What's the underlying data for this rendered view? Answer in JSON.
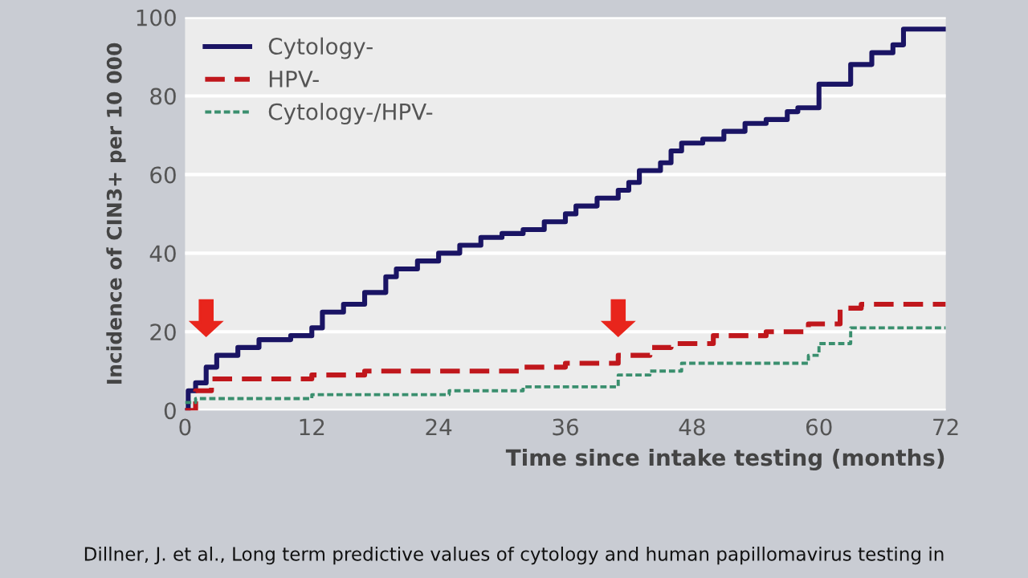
{
  "chart_data": {
    "type": "step",
    "ylabel": "Incidence of CIN3+ per 10 000",
    "xlabel": "Time since intake testing (months)",
    "annotations": [
      "Dillner, J. et al., Long term predictive values of cytology and human papillomavirus testing in"
    ],
    "series": [
      {
        "name": "Cytology-",
        "color": "#1a1464",
        "line_style": "solid",
        "x": [
          0,
          0.3,
          1,
          2,
          3,
          5,
          7,
          10,
          12,
          13,
          15,
          17,
          19,
          20,
          22,
          24,
          26,
          28,
          30,
          32,
          34,
          36,
          37,
          39,
          41,
          42,
          43,
          45,
          46,
          47,
          49,
          51,
          53,
          55,
          57,
          58,
          60,
          63,
          65,
          67,
          68,
          72
        ],
        "values": [
          0,
          5,
          7,
          11,
          14,
          16,
          18,
          19,
          21,
          25,
          27,
          30,
          34,
          36,
          38,
          40,
          42,
          44,
          45,
          46,
          48,
          50,
          52,
          54,
          56,
          58,
          61,
          63,
          66,
          68,
          69,
          71,
          73,
          74,
          76,
          77,
          83,
          88,
          91,
          93,
          97,
          97
        ]
      },
      {
        "name": "HPV-",
        "color": "#c0171c",
        "line_style": "dashed",
        "x": [
          0,
          1,
          2.5,
          12,
          17,
          32,
          36,
          41,
          44,
          46,
          50,
          55,
          59,
          62,
          64,
          72
        ],
        "values": [
          0,
          5,
          8,
          9,
          10,
          11,
          12,
          14,
          16,
          17,
          19,
          20,
          22,
          26,
          27,
          27
        ]
      },
      {
        "name": "Cytology-/HPV-",
        "color": "#3a8f6e",
        "line_style": "dotted",
        "x": [
          0,
          1,
          12,
          25,
          32,
          41,
          44,
          47,
          59,
          60,
          63,
          72
        ],
        "values": [
          2,
          3,
          4,
          5,
          6,
          9,
          10,
          12,
          14,
          17,
          21,
          21
        ]
      }
    ],
    "xlim": [
      0,
      72
    ],
    "xticks": [
      0,
      12,
      24,
      36,
      48,
      60,
      72
    ],
    "ylim": [
      0,
      100
    ],
    "yticks": [
      0,
      20,
      40,
      60,
      80,
      100
    ],
    "grid": "y",
    "legend": "top left"
  }
}
